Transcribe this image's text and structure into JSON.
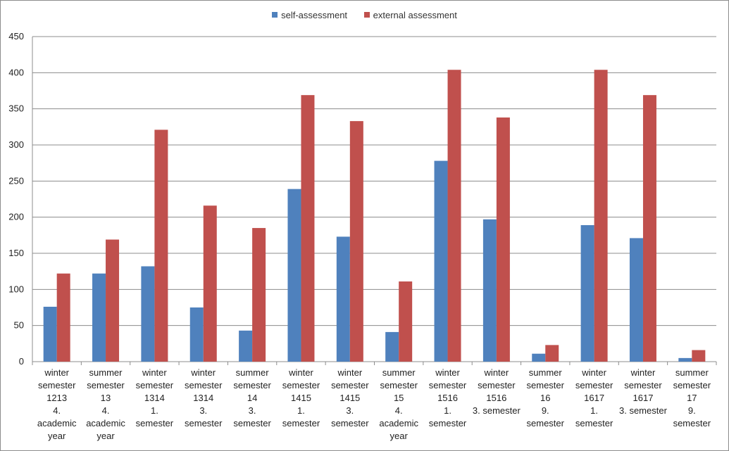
{
  "chart_data": {
    "type": "bar",
    "title": "",
    "xlabel": "",
    "ylabel": "",
    "ylim": [
      0,
      450
    ],
    "ytick_step": 50,
    "grid": true,
    "legend_position": "top-center",
    "categories": [
      [
        "winter",
        "semester",
        "1213",
        "4.",
        "academic",
        "year"
      ],
      [
        "summer",
        "semester",
        "13",
        "4.",
        "academic",
        "year"
      ],
      [
        "winter",
        "semester",
        "1314",
        "1.",
        "semester"
      ],
      [
        "winter",
        "semester",
        "1314",
        "3.",
        "semester"
      ],
      [
        "summer",
        "semester",
        "14",
        "3.",
        "semester"
      ],
      [
        "winter",
        "semester",
        "1415",
        "1.",
        "semester"
      ],
      [
        "winter",
        "semester",
        "1415",
        "3.",
        "semester"
      ],
      [
        "summer",
        "semester",
        "15",
        "4.",
        "academic",
        "year"
      ],
      [
        "winter",
        "semester",
        "1516",
        "1.",
        "semester"
      ],
      [
        "winter",
        "semester",
        "1516",
        "3. semester"
      ],
      [
        "summer",
        "semester",
        "16",
        "9.",
        "semester"
      ],
      [
        "winter",
        "semester",
        "1617",
        "1.",
        "semester"
      ],
      [
        "winter",
        "semester",
        "1617",
        "3. semester"
      ],
      [
        "summer",
        "semester",
        "17",
        "9.",
        "semester"
      ]
    ],
    "series": [
      {
        "name": "self-assessment",
        "color": "#4f81bd",
        "values": [
          76,
          122,
          132,
          75,
          43,
          239,
          173,
          41,
          278,
          197,
          11,
          189,
          171,
          5
        ]
      },
      {
        "name": "external assessment",
        "color": "#c0504d",
        "values": [
          122,
          169,
          321,
          216,
          185,
          369,
          333,
          111,
          404,
          338,
          23,
          404,
          369,
          16
        ]
      }
    ]
  }
}
